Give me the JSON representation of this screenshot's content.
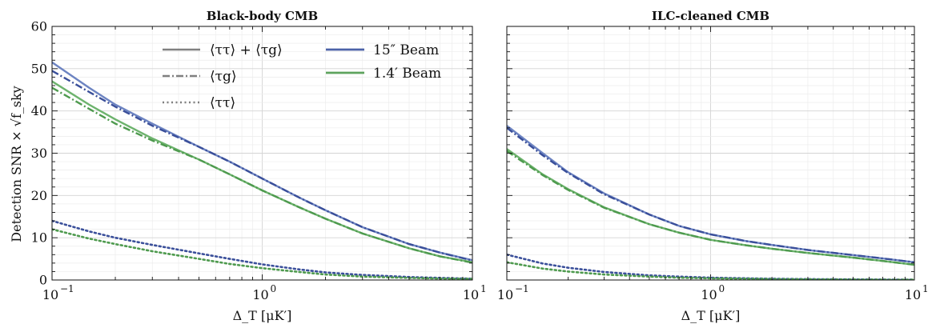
{
  "chart_data": {
    "type": "line",
    "ylabel": "Detection SNR × √f_sky",
    "xlabel": "Δ_T [μK′]",
    "x_scale": "log",
    "xlim": [
      0.1,
      10
    ],
    "ylim": [
      0,
      60
    ],
    "x_tick_labels": [
      "10",
      "10",
      "10"
    ],
    "x_tick_exponents": [
      "−1",
      "0",
      "1"
    ],
    "y_tick_labels": [
      "0",
      "10",
      "20",
      "30",
      "40",
      "50",
      "60"
    ],
    "grid": true,
    "legend_position": "top-left",
    "legend": {
      "linestyles": [
        {
          "label": "⟨ττ⟩ + ⟨τg⟩",
          "style": "solid"
        },
        {
          "label": "⟨τg⟩",
          "style": "dashdot"
        },
        {
          "label": "⟨ττ⟩",
          "style": "dotted"
        }
      ],
      "colors": [
        {
          "label": "15″ Beam",
          "color": "#4c62a8"
        },
        {
          "label": "1.4′ Beam",
          "color": "#5ea35e"
        }
      ]
    },
    "x": [
      0.1,
      0.15,
      0.2,
      0.3,
      0.5,
      0.7,
      1,
      1.5,
      2,
      3,
      5,
      7,
      10
    ],
    "panels": [
      {
        "title": "Black-body CMB",
        "series": [
          {
            "beam": "15″ Beam",
            "style": "solid",
            "color": "#6d84c2",
            "values": [
              51.5,
              45.5,
              41.5,
              37,
              31.5,
              28,
              24,
              19.5,
              16.5,
              12.5,
              8.5,
              6.5,
              4.7
            ]
          },
          {
            "beam": "15″ Beam",
            "style": "dashdot",
            "color": "#3a4f9a",
            "values": [
              49.5,
              44.5,
              41,
              36.5,
              31.5,
              28,
              24,
              19.5,
              16.5,
              12.5,
              8.5,
              6.5,
              4.6
            ]
          },
          {
            "beam": "15″ Beam",
            "style": "dotted",
            "color": "#3a4f9a",
            "values": [
              14,
              11.5,
              10,
              8.3,
              6.3,
              5,
              3.7,
              2.5,
              1.8,
              1.2,
              0.7,
              0.5,
              0.3
            ]
          },
          {
            "beam": "1.4′ Beam",
            "style": "solid",
            "color": "#6db36d",
            "values": [
              47,
              41.5,
              38,
              33.5,
              28.5,
              25,
              21.2,
              17.2,
              14.5,
              11,
              7.5,
              5.6,
              4.2
            ]
          },
          {
            "beam": "1.4′ Beam",
            "style": "dashdot",
            "color": "#4e9a4e",
            "values": [
              45.5,
              40.5,
              37,
              33,
              28.5,
              25,
              21.2,
              17.2,
              14.5,
              11,
              7.5,
              5.6,
              4.1
            ]
          },
          {
            "beam": "1.4′ Beam",
            "style": "dotted",
            "color": "#4e9a4e",
            "values": [
              12,
              9.8,
              8.5,
              6.8,
              5,
              3.8,
              2.8,
              1.9,
              1.3,
              0.8,
              0.5,
              0.35,
              0.25
            ]
          }
        ]
      },
      {
        "title": "ILC-cleaned CMB",
        "series": [
          {
            "beam": "15″ Beam",
            "style": "solid",
            "color": "#6d84c2",
            "values": [
              36.5,
              30,
              25.5,
              20.5,
              15.5,
              12.8,
              10.8,
              9.2,
              8.3,
              7.1,
              5.9,
              5.1,
              4.2
            ]
          },
          {
            "beam": "15″ Beam",
            "style": "dashdot",
            "color": "#3a4f9a",
            "values": [
              36,
              29.5,
              25.3,
              20.3,
              15.5,
              12.8,
              10.8,
              9.2,
              8.3,
              7.1,
              5.9,
              5.1,
              4.2
            ]
          },
          {
            "beam": "15″ Beam",
            "style": "dotted",
            "color": "#3a4f9a",
            "values": [
              6,
              3.9,
              2.9,
              1.9,
              1.1,
              0.8,
              0.55,
              0.4,
              0.3,
              0.2,
              0.15,
              0.1,
              0.08
            ]
          },
          {
            "beam": "1.4′ Beam",
            "style": "solid",
            "color": "#6db36d",
            "values": [
              31,
              25,
              21.5,
              17.2,
              13.2,
              11.2,
              9.5,
              8.2,
              7.4,
              6.4,
              5.3,
              4.5,
              3.6
            ]
          },
          {
            "beam": "1.4′ Beam",
            "style": "dashdot",
            "color": "#4e9a4e",
            "values": [
              30.5,
              24.8,
              21.3,
              17.1,
              13.2,
              11.2,
              9.5,
              8.2,
              7.4,
              6.4,
              5.3,
              4.5,
              3.6
            ]
          },
          {
            "beam": "1.4′ Beam",
            "style": "dotted",
            "color": "#4e9a4e",
            "values": [
              4.2,
              2.7,
              2,
              1.3,
              0.8,
              0.55,
              0.4,
              0.3,
              0.22,
              0.15,
              0.1,
              0.07,
              0.05
            ]
          }
        ]
      }
    ]
  }
}
